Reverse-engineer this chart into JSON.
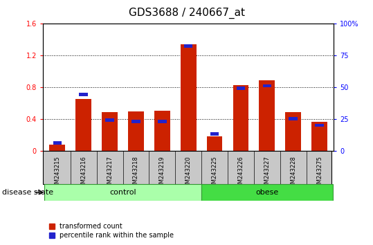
{
  "title": "GDS3688 / 240667_at",
  "samples": [
    "GSM243215",
    "GSM243216",
    "GSM243217",
    "GSM243218",
    "GSM243219",
    "GSM243220",
    "GSM243225",
    "GSM243226",
    "GSM243227",
    "GSM243228",
    "GSM243275"
  ],
  "transformed_count": [
    0.08,
    0.65,
    0.48,
    0.49,
    0.5,
    1.34,
    0.18,
    0.82,
    0.88,
    0.48,
    0.36
  ],
  "percentile_rank_pct": [
    6,
    44,
    24,
    23,
    23,
    82,
    13,
    49,
    51,
    25,
    20
  ],
  "ylim_left": [
    0,
    1.6
  ],
  "ylim_right": [
    0,
    100
  ],
  "yticks_left": [
    0,
    0.4,
    0.8,
    1.2,
    1.6
  ],
  "yticks_right": [
    0,
    25,
    50,
    75,
    100
  ],
  "groups": [
    {
      "label": "control",
      "indices": [
        0,
        1,
        2,
        3,
        4,
        5
      ],
      "color": "#AAFFAA"
    },
    {
      "label": "obese",
      "indices": [
        6,
        7,
        8,
        9,
        10
      ],
      "color": "#44DD44"
    }
  ],
  "bar_color_red": "#CC2200",
  "bar_color_blue": "#2222CC",
  "bar_width": 0.6,
  "legend_red": "transformed count",
  "legend_blue": "percentile rank within the sample",
  "disease_state_label": "disease state",
  "title_fontsize": 11,
  "tick_fontsize": 7,
  "label_fontsize": 8,
  "sample_fontsize": 6,
  "bg_gray": "#C8C8C8"
}
